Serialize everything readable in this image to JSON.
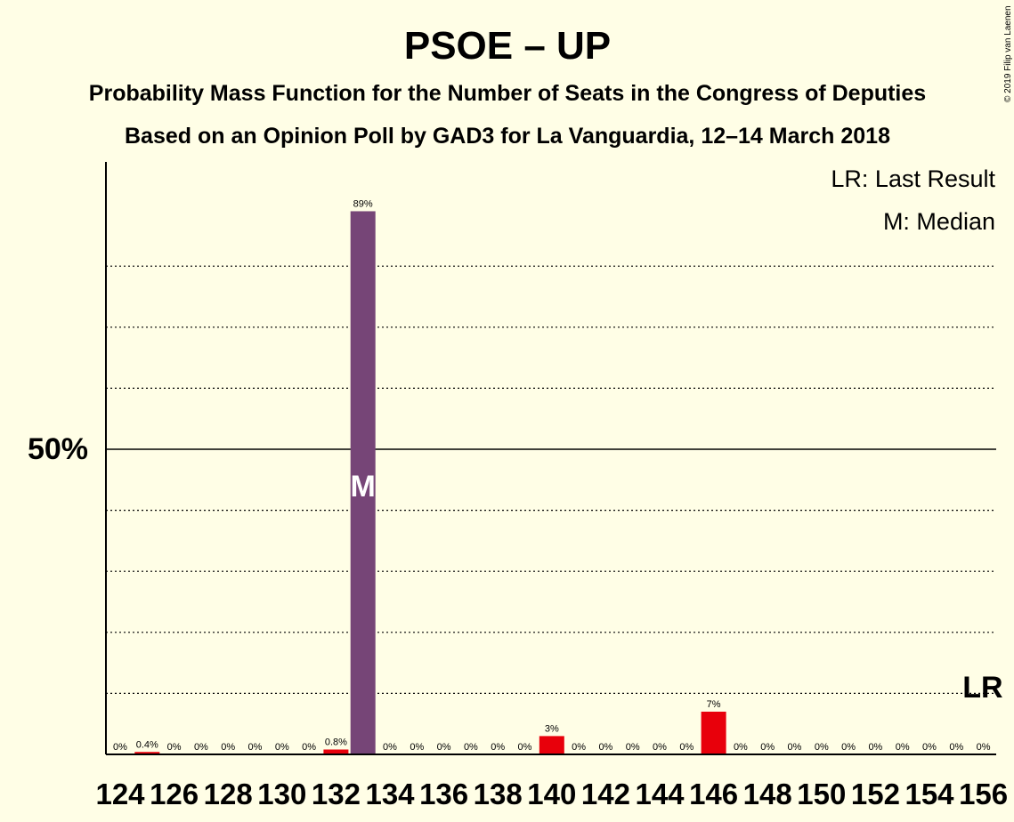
{
  "chart_data": {
    "type": "bar",
    "title": "PSOE – UP",
    "subtitle": "Probability Mass Function for the Number of Seats in the Congress of Deputies",
    "subtitle2": "Based on an Opinion Poll by GAD3 for La Vanguardia, 12–14 March 2018",
    "copyright": "© 2019 Filip van Laenen",
    "legend": {
      "last_result": "LR: Last Result",
      "median": "M: Median",
      "placement": "top-right"
    },
    "x": [
      124,
      125,
      126,
      127,
      128,
      129,
      130,
      131,
      132,
      133,
      134,
      135,
      136,
      137,
      138,
      139,
      140,
      141,
      142,
      143,
      144,
      145,
      146,
      147,
      148,
      149,
      150,
      151,
      152,
      153,
      154,
      155,
      156
    ],
    "values": [
      0,
      0.4,
      0,
      0,
      0,
      0,
      0,
      0,
      0.8,
      89,
      0,
      0,
      0,
      0,
      0,
      0,
      3,
      0,
      0,
      0,
      0,
      0,
      7,
      0,
      0,
      0,
      0,
      0,
      0,
      0,
      0,
      0,
      0
    ],
    "labels": [
      "0%",
      "0.4%",
      "0%",
      "0%",
      "0%",
      "0%",
      "0%",
      "0%",
      "0.8%",
      "89%",
      "0%",
      "0%",
      "0%",
      "0%",
      "0%",
      "0%",
      "3%",
      "0%",
      "0%",
      "0%",
      "0%",
      "0%",
      "7%",
      "0%",
      "0%",
      "0%",
      "0%",
      "0%",
      "0%",
      "0%",
      "0%",
      "0%",
      "0%"
    ],
    "tick_labels": [
      "124",
      "126",
      "128",
      "130",
      "132",
      "134",
      "136",
      "138",
      "140",
      "142",
      "144",
      "146",
      "148",
      "150",
      "152",
      "154",
      "156"
    ],
    "median_x": 133,
    "median_marker": "M",
    "last_result_x": 156,
    "last_result_marker": "LR",
    "ylim": [
      0,
      97
    ],
    "y_tick_label": "50%",
    "y_tick_value": 50,
    "dotted_gridlines": [
      10,
      20,
      30,
      40,
      60,
      70,
      80
    ],
    "colors": {
      "median_bar": "#764577",
      "other_bar": "#E8000B",
      "background": "#FFFEE6"
    }
  }
}
